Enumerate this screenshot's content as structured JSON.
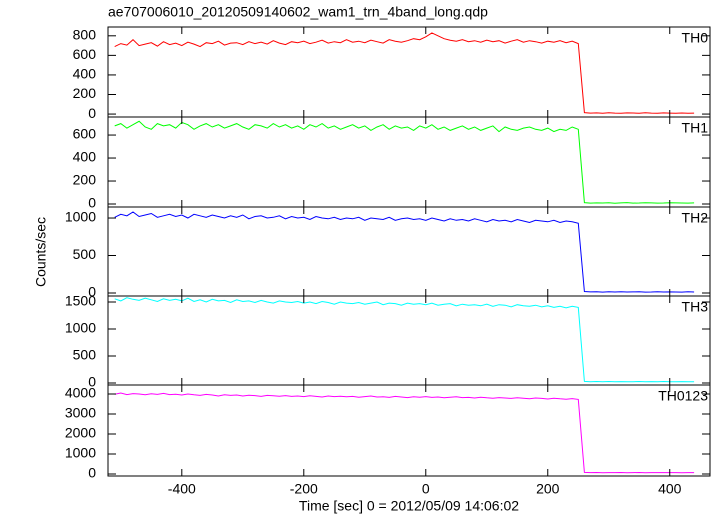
{
  "chart_data": {
    "type": "line",
    "title": "ae707006010_20120509140602_wam1_trn_4band_long.qdp",
    "x_label": "Time [sec] 0 = 2012/05/09 14:06:02",
    "y_label": "Counts/sec",
    "xlim": [
      -521,
      466
    ],
    "xticks": [
      -400,
      -200,
      0,
      200,
      400
    ],
    "x": [
      -510,
      -500,
      -490,
      -480,
      -470,
      -460,
      -450,
      -440,
      -430,
      -420,
      -410,
      -400,
      -390,
      -380,
      -370,
      -360,
      -350,
      -340,
      -330,
      -320,
      -310,
      -300,
      -290,
      -280,
      -270,
      -260,
      -250,
      -240,
      -230,
      -220,
      -210,
      -200,
      -190,
      -180,
      -170,
      -160,
      -150,
      -140,
      -130,
      -120,
      -110,
      -100,
      -90,
      -80,
      -70,
      -60,
      -50,
      -40,
      -30,
      -20,
      -10,
      0,
      10,
      20,
      30,
      40,
      50,
      60,
      70,
      80,
      90,
      100,
      110,
      120,
      130,
      140,
      150,
      160,
      170,
      180,
      190,
      200,
      210,
      220,
      230,
      240,
      250,
      260,
      270,
      280,
      290,
      300,
      310,
      320,
      330,
      340,
      350,
      360,
      370,
      380,
      390,
      400,
      410,
      420,
      430,
      440
    ],
    "series": [
      {
        "name": "TH0",
        "color": "#ff0000",
        "ylim": [
          -30,
          890
        ],
        "yticks": [
          0,
          200,
          400,
          600,
          800
        ],
        "values": [
          690,
          720,
          705,
          760,
          700,
          715,
          730,
          695,
          740,
          710,
          725,
          700,
          735,
          715,
          690,
          730,
          720,
          745,
          705,
          725,
          730,
          710,
          740,
          720,
          735,
          715,
          750,
          725,
          710,
          740,
          730,
          745,
          720,
          735,
          755,
          725,
          740,
          730,
          760,
          735,
          745,
          730,
          755,
          740,
          725,
          760,
          745,
          735,
          750,
          770,
          760,
          790,
          830,
          800,
          770,
          755,
          745,
          760,
          740,
          750,
          735,
          755,
          740,
          750,
          725,
          745,
          760,
          735,
          750,
          740,
          725,
          745,
          735,
          750,
          730,
          745,
          720,
          15,
          10,
          12,
          8,
          14,
          10,
          9,
          12,
          11,
          8,
          13,
          10,
          9,
          12,
          10,
          8,
          11,
          9,
          10
        ]
      },
      {
        "name": "TH1",
        "color": "#00ff00",
        "ylim": [
          -26,
          757
        ],
        "yticks": [
          0,
          200,
          400,
          600
        ],
        "values": [
          680,
          700,
          660,
          690,
          720,
          670,
          650,
          700,
          680,
          690,
          660,
          710,
          690,
          650,
          680,
          700,
          670,
          690,
          660,
          680,
          700,
          670,
          650,
          690,
          680,
          660,
          700,
          670,
          690,
          660,
          680,
          650,
          690,
          670,
          700,
          660,
          680,
          650,
          670,
          690,
          660,
          680,
          640,
          670,
          690,
          650,
          680,
          660,
          670,
          640,
          680,
          660,
          690,
          650,
          670,
          640,
          660,
          680,
          650,
          670,
          640,
          660,
          680,
          630,
          670,
          650,
          640,
          660,
          670,
          650,
          640,
          660,
          630,
          650,
          640,
          670,
          650,
          12,
          8,
          10,
          9,
          11,
          7,
          10,
          12,
          8,
          9,
          11,
          10,
          8,
          9,
          11,
          10,
          9,
          8,
          10
        ]
      },
      {
        "name": "TH2",
        "color": "#0000ff",
        "ylim": [
          -40,
          1147
        ],
        "yticks": [
          0,
          500,
          1000
        ],
        "values": [
          1010,
          1050,
          1030,
          1080,
          1020,
          1040,
          1060,
          1010,
          1030,
          1050,
          1020,
          1040,
          1000,
          1050,
          1030,
          1010,
          1040,
          1020,
          1000,
          1030,
          1010,
          1040,
          990,
          1020,
          1030,
          1000,
          1010,
          1030,
          990,
          1020,
          1000,
          1010,
          980,
          1020,
          1000,
          990,
          1010,
          980,
          1000,
          990,
          1010,
          970,
          1000,
          990,
          980,
          1010,
          970,
          990,
          1000,
          980,
          990,
          970,
          1000,
          980,
          960,
          990,
          970,
          980,
          960,
          990,
          970,
          950,
          980,
          960,
          970,
          950,
          980,
          960,
          940,
          970,
          960,
          950,
          970,
          940,
          960,
          950,
          930,
          20,
          15,
          18,
          12,
          16,
          14,
          17,
          13,
          15,
          16,
          12,
          14,
          18,
          13,
          15,
          14,
          12,
          16,
          14
        ]
      },
      {
        "name": "TH3",
        "color": "#00ffff",
        "ylim": [
          -37,
          1611
        ],
        "yticks": [
          0,
          500,
          1000,
          1500
        ],
        "values": [
          1560,
          1520,
          1580,
          1550,
          1530,
          1570,
          1540,
          1510,
          1560,
          1530,
          1550,
          1520,
          1570,
          1510,
          1540,
          1500,
          1550,
          1520,
          1530,
          1490,
          1540,
          1510,
          1520,
          1490,
          1530,
          1500,
          1480,
          1520,
          1500,
          1490,
          1510,
          1480,
          1500,
          1470,
          1510,
          1490,
          1460,
          1500,
          1480,
          1470,
          1490,
          1460,
          1480,
          1500,
          1450,
          1480,
          1470,
          1440,
          1480,
          1460,
          1470,
          1450,
          1480,
          1440,
          1460,
          1470,
          1430,
          1460,
          1440,
          1450,
          1430,
          1460,
          1420,
          1450,
          1440,
          1410,
          1450,
          1430,
          1420,
          1440,
          1410,
          1430,
          1400,
          1420,
          1390,
          1420,
          1400,
          30,
          25,
          28,
          22,
          27,
          24,
          26,
          23,
          25,
          28,
          22,
          26,
          24,
          27,
          23,
          25,
          26,
          24,
          25
        ]
      },
      {
        "name": "TH0123",
        "color": "#ff00ff",
        "ylim": [
          -100,
          4450
        ],
        "yticks": [
          0,
          1000,
          2000,
          3000,
          4000
        ],
        "values": [
          3990,
          4050,
          3970,
          4020,
          4000,
          3960,
          4010,
          3980,
          4030,
          3970,
          3990,
          3950,
          4000,
          3960,
          3930,
          3980,
          3950,
          3900,
          3960,
          3930,
          3950,
          3900,
          3940,
          3920,
          3880,
          3930,
          3910,
          3890,
          3920,
          3880,
          3900,
          3870,
          3910,
          3880,
          3850,
          3900,
          3870,
          3890,
          3860,
          3880,
          3840,
          3870,
          3900,
          3850,
          3860,
          3830,
          3880,
          3850,
          3820,
          3860,
          3840,
          3870,
          3830,
          3850,
          3810,
          3840,
          3860,
          3820,
          3830,
          3800,
          3840,
          3810,
          3790,
          3820,
          3800,
          3780,
          3810,
          3790,
          3760,
          3800,
          3780,
          3750,
          3790,
          3760,
          3740,
          3770,
          3730,
          80,
          70,
          75,
          65,
          72,
          68,
          74,
          66,
          70,
          73,
          67,
          71,
          69,
          72,
          68,
          70,
          66,
          71,
          69
        ]
      }
    ]
  }
}
